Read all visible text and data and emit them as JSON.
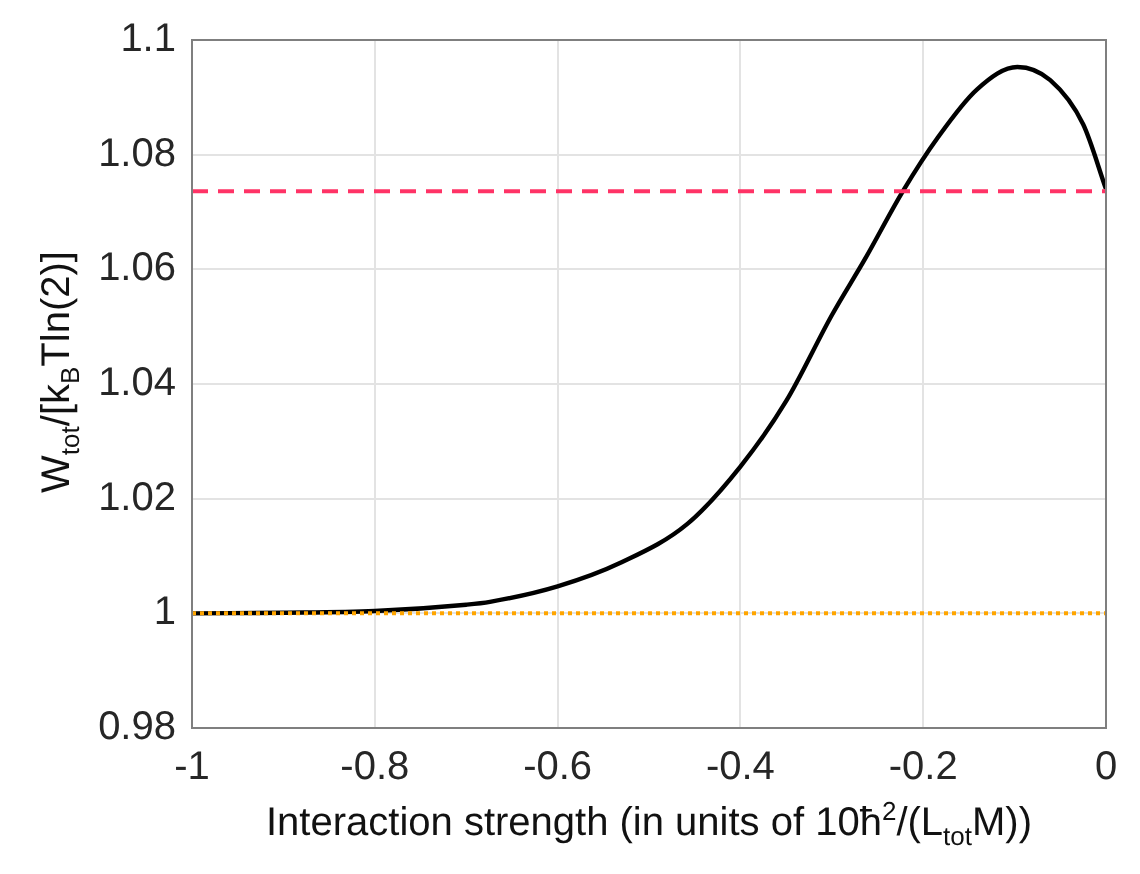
{
  "chart_data": {
    "type": "line",
    "xlabel": "Interaction strength (in units of 10ħ$^{2}$/(L$_{tot}$M))",
    "ylabel": "W$_{tot}$/[k$_{B}$Tln(2)]",
    "xlim": [
      -1,
      0
    ],
    "xticks": [
      -1,
      -0.8,
      -0.6,
      -0.4,
      -0.2,
      0
    ],
    "ylim": [
      0.98,
      1.1
    ],
    "yticks": [
      0.98,
      1,
      1.02,
      1.04,
      1.06,
      1.08,
      1.1
    ],
    "grid": true,
    "legend": false,
    "marker": "none",
    "line_style": "solid",
    "series": [
      {
        "color": "#000000",
        "x": [
          -1,
          -0.9,
          -0.8,
          -0.7,
          -0.674,
          -0.6,
          -0.53,
          -0.458,
          -0.4,
          -0.35,
          -0.3,
          -0.263,
          -0.222,
          -0.184,
          -0.141,
          -0.097,
          -0.061,
          -0.025,
          0
        ],
        "values": [
          1.0,
          1.0001,
          1.0004,
          1.0015,
          1.002,
          1.0047,
          1.0089,
          1.0156,
          1.0256,
          1.037,
          1.052,
          1.062,
          1.0737,
          1.083,
          1.0914,
          1.0953,
          1.093,
          1.0853,
          1.074
        ]
      }
    ],
    "ref_lines": [
      {
        "axis": "y",
        "value": 1.0736,
        "color": "#ff3366",
        "line_style": "dashed"
      },
      {
        "axis": "y",
        "value": 1.0,
        "color": "#ffa500",
        "line_style": "dotted"
      }
    ]
  }
}
